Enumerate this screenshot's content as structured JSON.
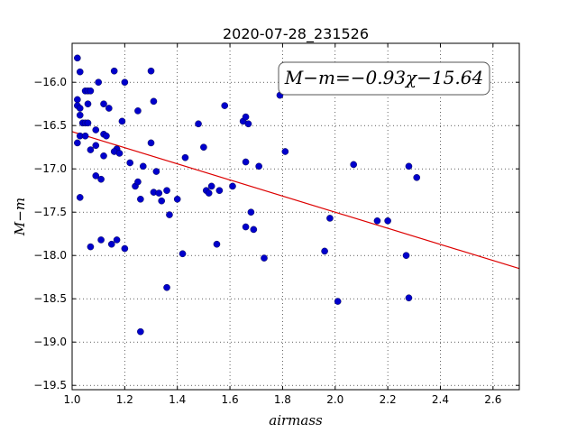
{
  "chart_data": {
    "type": "scatter",
    "title": "2020-07-28_231526",
    "xlabel": "airmass",
    "ylabel": "M−m",
    "xlim": [
      1.0,
      2.7
    ],
    "ylim": [
      -19.55,
      -15.55
    ],
    "y_inverted": true,
    "xticks": [
      "1.0",
      "1.2",
      "1.4",
      "1.6",
      "1.8",
      "2.0",
      "2.2",
      "2.4",
      "2.6"
    ],
    "yticks": [
      "−16.0",
      "−16.5",
      "−17.0",
      "−17.5",
      "−18.0",
      "−18.5",
      "−19.0",
      "−19.5"
    ],
    "grid": true,
    "annotation": "M−m=−0.93χ−15.64",
    "colors": {
      "points": "#0000cc",
      "fit_line": "#dd0000"
    },
    "fit": {
      "slope": -0.93,
      "intercept": -15.64
    },
    "points": [
      [
        1.02,
        -15.72
      ],
      [
        1.03,
        -15.88
      ],
      [
        1.02,
        -16.2
      ],
      [
        1.02,
        -16.27
      ],
      [
        1.03,
        -16.3
      ],
      [
        1.03,
        -16.38
      ],
      [
        1.05,
        -16.1
      ],
      [
        1.06,
        -16.1
      ],
      [
        1.07,
        -16.1
      ],
      [
        1.06,
        -16.25
      ],
      [
        1.04,
        -16.47
      ],
      [
        1.05,
        -16.47
      ],
      [
        1.06,
        -16.47
      ],
      [
        1.03,
        -16.62
      ],
      [
        1.05,
        -16.62
      ],
      [
        1.02,
        -16.7
      ],
      [
        1.07,
        -16.78
      ],
      [
        1.09,
        -16.73
      ],
      [
        1.09,
        -16.55
      ],
      [
        1.1,
        -16.0
      ],
      [
        1.12,
        -16.25
      ],
      [
        1.12,
        -16.6
      ],
      [
        1.13,
        -16.62
      ],
      [
        1.14,
        -16.3
      ],
      [
        1.16,
        -15.87
      ],
      [
        1.17,
        -16.77
      ],
      [
        1.16,
        -16.8
      ],
      [
        1.18,
        -16.82
      ],
      [
        1.19,
        -16.45
      ],
      [
        1.2,
        -16.0
      ],
      [
        1.12,
        -16.85
      ],
      [
        1.09,
        -17.08
      ],
      [
        1.11,
        -17.12
      ],
      [
        1.03,
        -17.33
      ],
      [
        1.22,
        -16.93
      ],
      [
        1.25,
        -16.33
      ],
      [
        1.27,
        -16.97
      ],
      [
        1.24,
        -17.2
      ],
      [
        1.25,
        -17.15
      ],
      [
        1.26,
        -17.35
      ],
      [
        1.3,
        -15.87
      ],
      [
        1.31,
        -16.22
      ],
      [
        1.3,
        -16.7
      ],
      [
        1.32,
        -17.03
      ],
      [
        1.31,
        -17.27
      ],
      [
        1.33,
        -17.28
      ],
      [
        1.34,
        -17.37
      ],
      [
        1.36,
        -17.25
      ],
      [
        1.37,
        -17.53
      ],
      [
        1.4,
        -17.35
      ],
      [
        1.43,
        -16.87
      ],
      [
        1.48,
        -16.48
      ],
      [
        1.5,
        -16.75
      ],
      [
        1.51,
        -17.25
      ],
      [
        1.52,
        -17.28
      ],
      [
        1.53,
        -17.2
      ],
      [
        1.56,
        -17.25
      ],
      [
        1.58,
        -16.27
      ],
      [
        1.61,
        -17.2
      ],
      [
        1.65,
        -16.45
      ],
      [
        1.66,
        -16.4
      ],
      [
        1.67,
        -16.48
      ],
      [
        1.66,
        -16.92
      ],
      [
        1.71,
        -16.97
      ],
      [
        1.68,
        -17.5
      ],
      [
        1.66,
        -17.67
      ],
      [
        1.69,
        -17.7
      ],
      [
        1.79,
        -16.15
      ],
      [
        1.81,
        -16.8
      ],
      [
        1.07,
        -17.9
      ],
      [
        1.11,
        -17.82
      ],
      [
        1.15,
        -17.87
      ],
      [
        1.17,
        -17.82
      ],
      [
        1.2,
        -17.92
      ],
      [
        1.42,
        -17.98
      ],
      [
        1.55,
        -17.87
      ],
      [
        1.73,
        -18.03
      ],
      [
        1.36,
        -18.37
      ],
      [
        1.26,
        -18.88
      ],
      [
        1.96,
        -17.95
      ],
      [
        1.98,
        -17.57
      ],
      [
        2.01,
        -18.53
      ],
      [
        2.07,
        -16.95
      ],
      [
        2.16,
        -17.6
      ],
      [
        2.2,
        -17.6
      ],
      [
        2.27,
        -18.0
      ],
      [
        2.28,
        -16.97
      ],
      [
        2.31,
        -17.1
      ],
      [
        2.28,
        -18.49
      ]
    ]
  }
}
